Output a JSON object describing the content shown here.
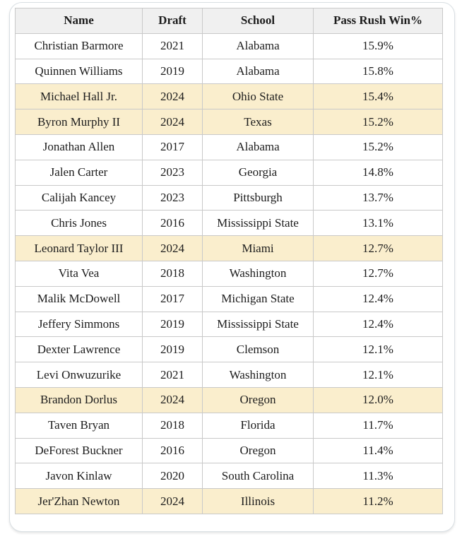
{
  "chart_data": {
    "type": "table",
    "columns": [
      "Name",
      "Draft",
      "School",
      "Pass Rush Win%"
    ],
    "rows": [
      {
        "name": "Christian Barmore",
        "draft": "2021",
        "school": "Alabama",
        "pass_rush_win": "15.9%",
        "highlighted": false
      },
      {
        "name": "Quinnen Williams",
        "draft": "2019",
        "school": "Alabama",
        "pass_rush_win": "15.8%",
        "highlighted": false
      },
      {
        "name": "Michael Hall Jr.",
        "draft": "2024",
        "school": "Ohio State",
        "pass_rush_win": "15.4%",
        "highlighted": true
      },
      {
        "name": "Byron Murphy II",
        "draft": "2024",
        "school": "Texas",
        "pass_rush_win": "15.2%",
        "highlighted": true
      },
      {
        "name": "Jonathan Allen",
        "draft": "2017",
        "school": "Alabama",
        "pass_rush_win": "15.2%",
        "highlighted": false
      },
      {
        "name": "Jalen Carter",
        "draft": "2023",
        "school": "Georgia",
        "pass_rush_win": "14.8%",
        "highlighted": false
      },
      {
        "name": "Calijah Kancey",
        "draft": "2023",
        "school": "Pittsburgh",
        "pass_rush_win": "13.7%",
        "highlighted": false
      },
      {
        "name": "Chris Jones",
        "draft": "2016",
        "school": "Mississippi State",
        "pass_rush_win": "13.1%",
        "highlighted": false
      },
      {
        "name": "Leonard Taylor III",
        "draft": "2024",
        "school": "Miami",
        "pass_rush_win": "12.7%",
        "highlighted": true
      },
      {
        "name": "Vita Vea",
        "draft": "2018",
        "school": "Washington",
        "pass_rush_win": "12.7%",
        "highlighted": false
      },
      {
        "name": "Malik McDowell",
        "draft": "2017",
        "school": "Michigan State",
        "pass_rush_win": "12.4%",
        "highlighted": false
      },
      {
        "name": "Jeffery Simmons",
        "draft": "2019",
        "school": "Mississippi State",
        "pass_rush_win": "12.4%",
        "highlighted": false
      },
      {
        "name": "Dexter Lawrence",
        "draft": "2019",
        "school": "Clemson",
        "pass_rush_win": "12.1%",
        "highlighted": false
      },
      {
        "name": "Levi Onwuzurike",
        "draft": "2021",
        "school": "Washington",
        "pass_rush_win": "12.1%",
        "highlighted": false
      },
      {
        "name": "Brandon Dorlus",
        "draft": "2024",
        "school": "Oregon",
        "pass_rush_win": "12.0%",
        "highlighted": true
      },
      {
        "name": "Taven Bryan",
        "draft": "2018",
        "school": "Florida",
        "pass_rush_win": "11.7%",
        "highlighted": false
      },
      {
        "name": "DeForest Buckner",
        "draft": "2016",
        "school": "Oregon",
        "pass_rush_win": "11.4%",
        "highlighted": false
      },
      {
        "name": "Javon Kinlaw",
        "draft": "2020",
        "school": "South Carolina",
        "pass_rush_win": "11.3%",
        "highlighted": false
      },
      {
        "name": "Jer'Zhan Newton",
        "draft": "2024",
        "school": "Illinois",
        "pass_rush_win": "11.2%",
        "highlighted": true
      }
    ],
    "highlight_meaning": "2024 draft class rows",
    "layout": {
      "grid": "full-borders",
      "header_position": "top"
    }
  },
  "colors": {
    "highlight_row_bg": "#faeecd",
    "header_bg": "#f0f0f0",
    "table_border": "#c9c9c9",
    "card_border": "#d9dfe3",
    "text": "#1c1c1c"
  }
}
